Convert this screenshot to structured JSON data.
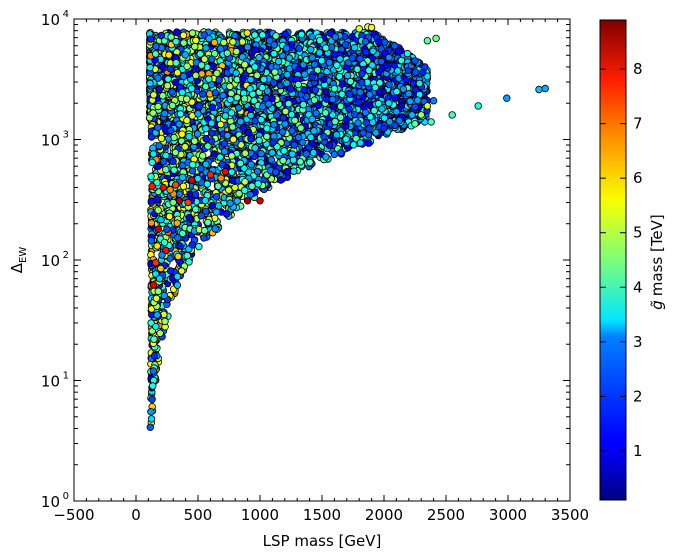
{
  "chart_data": {
    "type": "scatter",
    "title": "",
    "xlabel": "LSP mass [GeV]",
    "ylabel": "Δ",
    "ylabel_subscript": "EW",
    "xlim": [
      -500,
      3500
    ],
    "ylim": [
      1,
      10000
    ],
    "yscale": "log",
    "x_ticks": [
      -500,
      0,
      500,
      1000,
      1500,
      2000,
      2500,
      3000,
      3500
    ],
    "x_tick_labels": [
      "−500",
      "0",
      "500",
      "1000",
      "1500",
      "2000",
      "2500",
      "3000",
      "3500"
    ],
    "y_ticks": [
      1,
      10,
      100,
      1000,
      10000
    ],
    "y_tick_bases": [
      "10",
      "10",
      "10",
      "10",
      "10"
    ],
    "y_tick_exponents": [
      "0",
      "1",
      "2",
      "3",
      "4"
    ],
    "colorbar": {
      "label_prefix": "g̃",
      "label": "mass [TeV]",
      "range": [
        0.1,
        8.9
      ],
      "ticks": [
        1,
        2,
        3,
        4,
        5,
        6,
        7,
        8
      ],
      "tick_labels": [
        "1",
        "2",
        "3",
        "4",
        "5",
        "6",
        "7",
        "8"
      ],
      "colormap": "jet"
    },
    "grid": false,
    "legend": "none",
    "lower_boundary": [
      [
        120,
        3.8
      ],
      [
        150,
        8
      ],
      [
        200,
        20
      ],
      [
        300,
        45
      ],
      [
        400,
        80
      ],
      [
        500,
        120
      ],
      [
        700,
        200
      ],
      [
        900,
        300
      ],
      [
        1100,
        400
      ],
      [
        1300,
        520
      ],
      [
        1500,
        640
      ],
      [
        1700,
        790
      ],
      [
        1900,
        950
      ],
      [
        2100,
        1150
      ],
      [
        2300,
        1380
      ]
    ],
    "series": [
      {
        "values": [
          [
            130,
            410,
            7.6
          ],
          [
            220,
            400,
            7.8
          ],
          [
            320,
            420,
            7.2
          ],
          [
            450,
            460,
            8.1
          ],
          [
            600,
            510,
            7.5
          ],
          [
            720,
            540,
            7.9
          ],
          [
            180,
            180,
            8.3
          ],
          [
            260,
            170,
            7.0
          ],
          [
            350,
            310,
            8.5
          ],
          [
            900,
            310,
            8.6
          ],
          [
            1000,
            310,
            8.2
          ],
          [
            160,
            95,
            7.4
          ],
          [
            240,
            120,
            7.7
          ],
          [
            140,
            62,
            8.0
          ],
          [
            420,
            300,
            7.3
          ]
        ]
      },
      {
        "values": [
          [
            2250,
            1350,
            4.3
          ],
          [
            2300,
            1600,
            4.8
          ],
          [
            2350,
            1900,
            5.2
          ],
          [
            2380,
            1400,
            4.0
          ],
          [
            2550,
            1600,
            4.0
          ],
          [
            2760,
            1900,
            3.6
          ],
          [
            2990,
            2200,
            2.6
          ],
          [
            3250,
            2600,
            2.9
          ],
          [
            3300,
            2650,
            2.7
          ],
          [
            2350,
            6600,
            4.2
          ],
          [
            2420,
            6900,
            4.4
          ],
          [
            1870,
            8600,
            5.5
          ],
          [
            1900,
            8500,
            5.7
          ],
          [
            1800,
            8300,
            5.3
          ],
          [
            2250,
            4500,
            1.9
          ],
          [
            2330,
            4000,
            1.7
          ],
          [
            2400,
            2100,
            2.3
          ],
          [
            2200,
            2400,
            2.5
          ],
          [
            2100,
            1700,
            2.6
          ]
        ]
      },
      {
        "values": [
          [
            115,
            4.1,
            2.0
          ],
          [
            120,
            5.5,
            2.5
          ],
          [
            125,
            4.8,
            3.1
          ],
          [
            130,
            7,
            1.8
          ],
          [
            135,
            9,
            3.6
          ],
          [
            140,
            12,
            2.2
          ],
          [
            150,
            16,
            1.6
          ],
          [
            145,
            22,
            4.1
          ],
          [
            160,
            28,
            3.3
          ],
          [
            170,
            35,
            2.7
          ],
          [
            165,
            48,
            5.2
          ],
          [
            180,
            55,
            4.6
          ],
          [
            190,
            70,
            3.0
          ],
          [
            200,
            85,
            6.1
          ],
          [
            210,
            110,
            2.4
          ],
          [
            230,
            140,
            3.8
          ],
          [
            250,
            180,
            1.9
          ],
          [
            270,
            230,
            5.6
          ],
          [
            300,
            300,
            4.4
          ]
        ]
      }
    ]
  }
}
